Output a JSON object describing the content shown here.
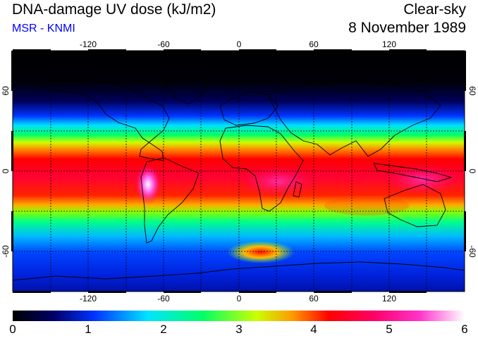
{
  "header": {
    "title": "DNA-damage UV dose (kJ/m2)",
    "subtitle": "MSR - KNMI",
    "sky_condition": "Clear-sky",
    "date": "8 November 1989"
  },
  "map": {
    "lon_ticks": [
      "-120",
      "-60",
      "0",
      "60",
      "120"
    ],
    "lat_ticks_left": [
      "60",
      "0",
      "-60"
    ],
    "lat_ticks_right": [
      "60",
      "0",
      "-60"
    ]
  },
  "colorbar": {
    "ticks": [
      "0",
      "1",
      "2",
      "3",
      "4",
      "5",
      "6"
    ],
    "min": 0,
    "max": 6,
    "colors": [
      "#000000",
      "#000066",
      "#0033ff",
      "#00e5ff",
      "#00ff66",
      "#ccff00",
      "#ff9900",
      "#ff0000",
      "#ff0066",
      "#ff33cc",
      "#ffffff"
    ]
  }
}
